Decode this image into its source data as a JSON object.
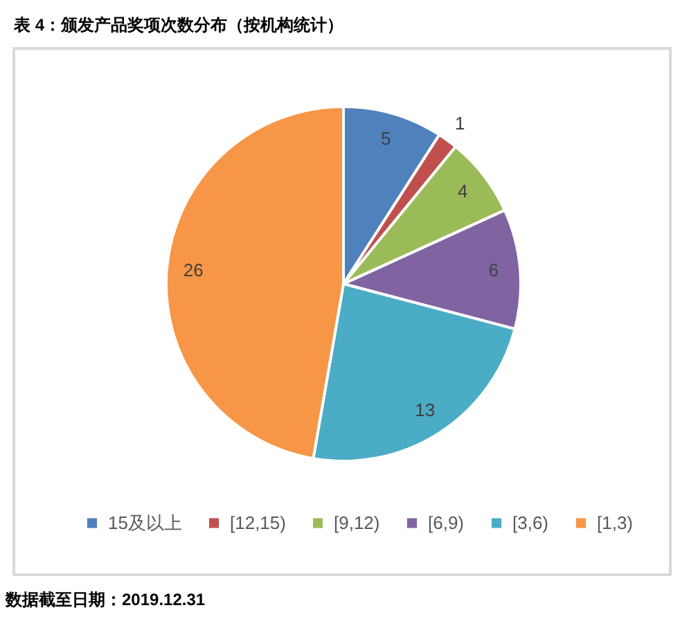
{
  "chart_data": {
    "type": "pie",
    "title": "表 4：颁发产品奖项次数分布（按机构统计）",
    "annotations": [
      "数据截至日期：2019.12.31"
    ],
    "categories": [
      "15及以上",
      "[12,15)",
      "[9,12)",
      "[6,9)",
      "[3,6)",
      "[1,3)"
    ],
    "values": [
      5,
      1,
      4,
      6,
      13,
      26
    ],
    "colors": [
      "#4f81bd",
      "#c0504d",
      "#9bbb59",
      "#8064a2",
      "#4bacc6",
      "#f79646"
    ],
    "data_labels": true,
    "legend": "bottom"
  }
}
